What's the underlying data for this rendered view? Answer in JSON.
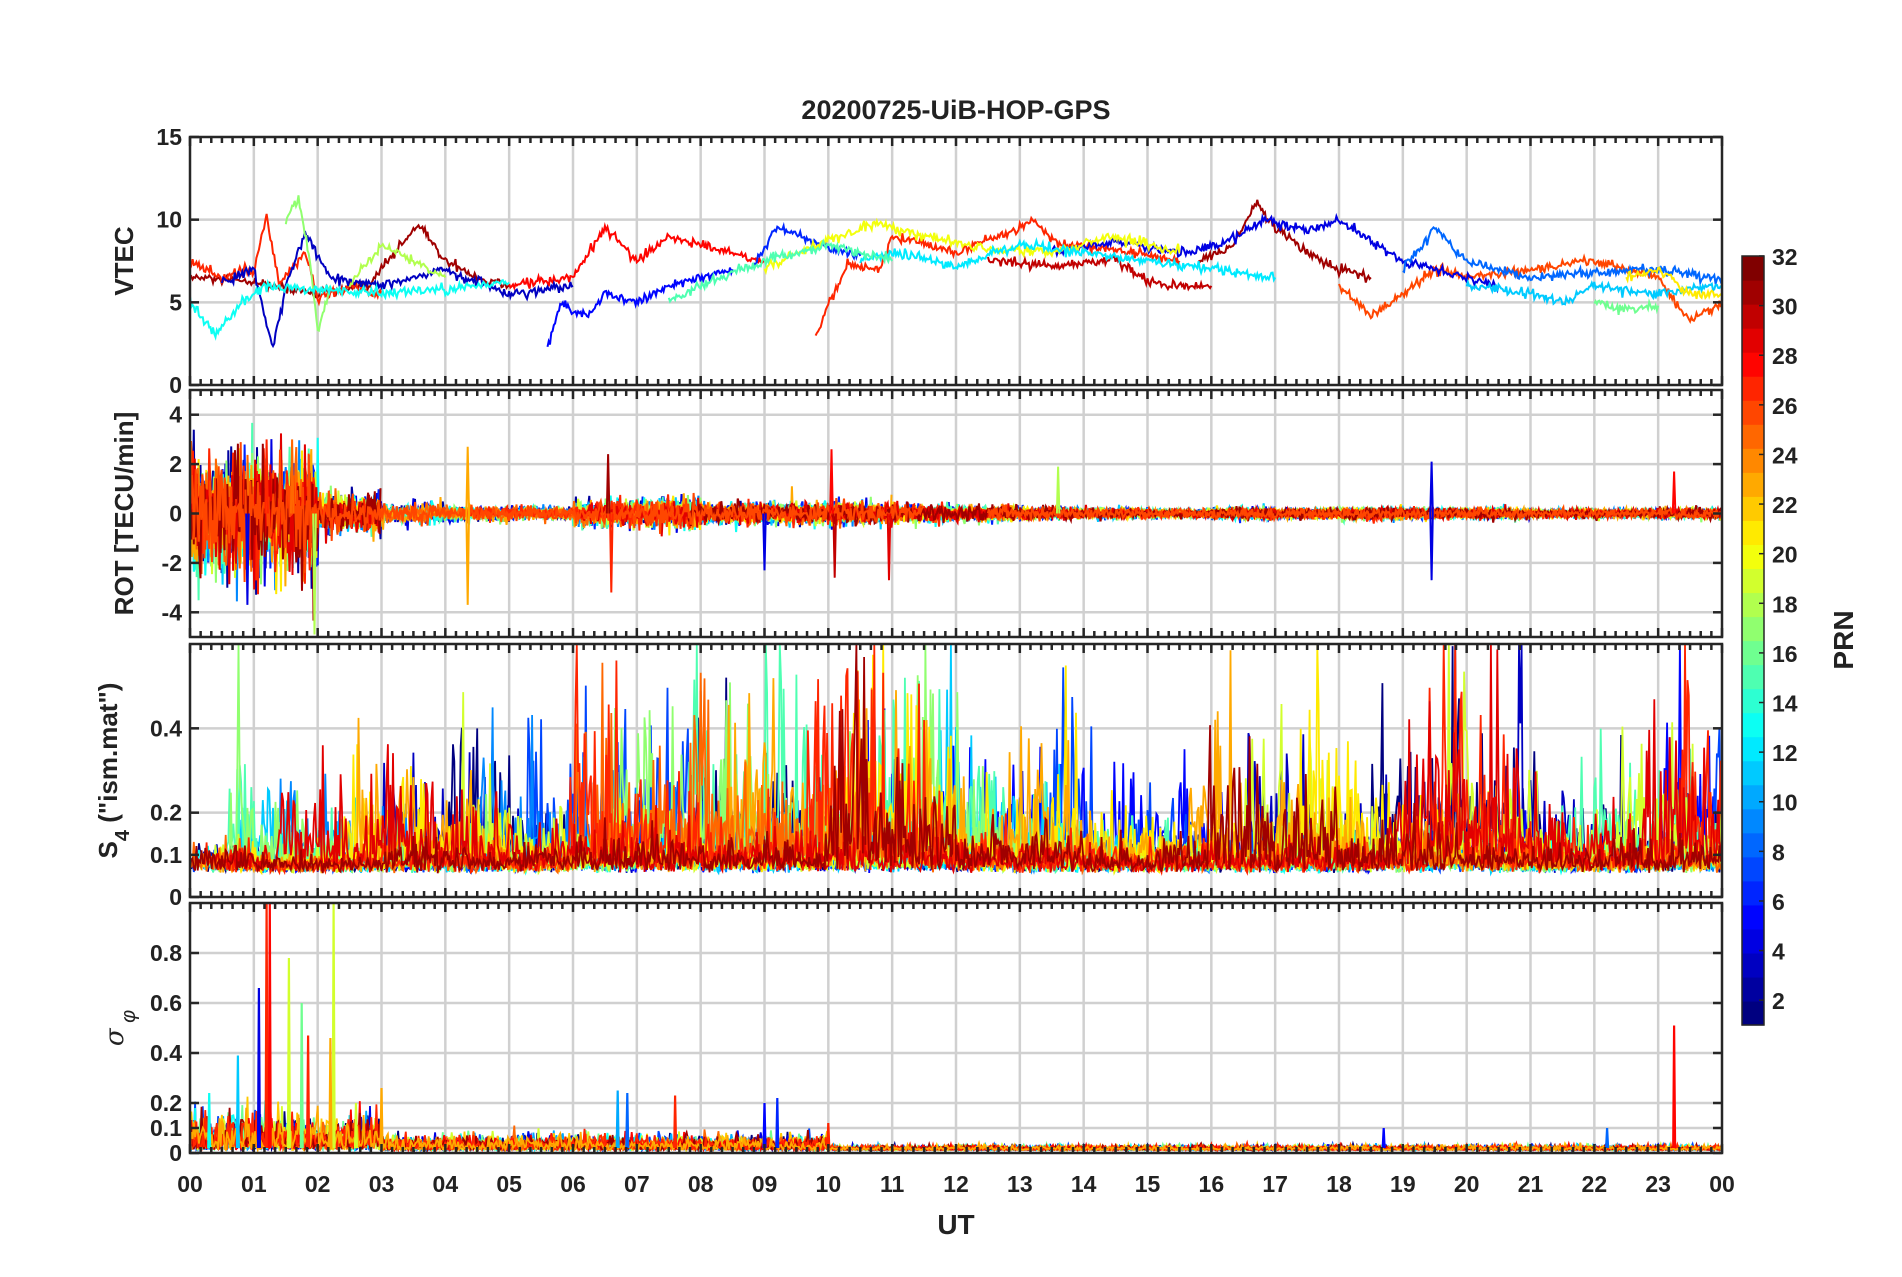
{
  "chart_data": {
    "type": "line",
    "title": "20200725-UiB-HOP-GPS",
    "xlabel": "UT",
    "x_tick_labels": [
      "00",
      "01",
      "02",
      "03",
      "04",
      "05",
      "06",
      "07",
      "08",
      "09",
      "10",
      "11",
      "12",
      "13",
      "14",
      "15",
      "16",
      "17",
      "18",
      "19",
      "20",
      "21",
      "22",
      "23",
      "00"
    ],
    "xlim_hours": [
      0,
      24
    ],
    "grid": true,
    "colorbar": {
      "label": "PRN",
      "range": [
        1,
        32
      ],
      "ticks": [
        2,
        4,
        6,
        8,
        10,
        12,
        14,
        16,
        18,
        20,
        22,
        24,
        26,
        28,
        30,
        32
      ],
      "colormap": "jet",
      "placement": "right"
    },
    "panels": [
      {
        "id": "vtec",
        "ylabel": "VTEC",
        "ylim": [
          0,
          15
        ],
        "yticks": [
          0,
          5,
          10,
          15
        ],
        "ytick_labels": [
          "0",
          "5",
          "10",
          "15"
        ],
        "series": [
          {
            "prn": 31,
            "points": [
              [
                0,
                6.5
              ],
              [
                1,
                6.2
              ],
              [
                2,
                5.5
              ],
              [
                2.8,
                6
              ],
              [
                3.3,
                8.5
              ],
              [
                3.6,
                9.7
              ],
              [
                4,
                7.5
              ],
              [
                4.5,
                6.5
              ],
              [
                5,
                6
              ]
            ]
          },
          {
            "prn": 31,
            "points": [
              [
                15.8,
                7.5
              ],
              [
                16.3,
                8.3
              ],
              [
                16.7,
                11
              ],
              [
                17,
                9.5
              ],
              [
                17.5,
                8
              ],
              [
                18,
                7
              ],
              [
                18.5,
                6.5
              ]
            ]
          },
          {
            "prn": 30,
            "points": [
              [
                12.5,
                7.5
              ],
              [
                13.5,
                7.2
              ],
              [
                14.5,
                7.6
              ],
              [
                15,
                6.2
              ],
              [
                15.5,
                6
              ],
              [
                16,
                6
              ]
            ]
          },
          {
            "prn": 27,
            "points": [
              [
                0,
                7.5
              ],
              [
                0.5,
                6.5
              ],
              [
                1,
                7
              ],
              [
                1.2,
                10.2
              ],
              [
                1.4,
                6
              ],
              [
                1.8,
                8
              ],
              [
                2,
                5.3
              ],
              [
                2.5,
                6
              ],
              [
                3,
                5.5
              ]
            ]
          },
          {
            "prn": 27,
            "points": [
              [
                9.8,
                2.8
              ],
              [
                10,
                5
              ],
              [
                10.3,
                7.2
              ],
              [
                10.8,
                7
              ],
              [
                11,
                9
              ],
              [
                12,
                8
              ],
              [
                13,
                9.5
              ],
              [
                13.2,
                10
              ],
              [
                13.6,
                8.5
              ],
              [
                14.5,
                8.2
              ],
              [
                15.5,
                7.5
              ]
            ]
          },
          {
            "prn": 26,
            "points": [
              [
                18,
                6
              ],
              [
                18.5,
                4.2
              ],
              [
                19,
                5.5
              ],
              [
                19.5,
                7
              ],
              [
                20,
                6.5
              ],
              [
                21,
                7
              ],
              [
                22,
                7.5
              ],
              [
                23,
                6.5
              ],
              [
                23.5,
                3.8
              ],
              [
                24,
                5
              ]
            ]
          },
          {
            "prn": 28,
            "points": [
              [
                5,
                6
              ],
              [
                6,
                6.5
              ],
              [
                6.5,
                9.5
              ],
              [
                7,
                7.5
              ],
              [
                7.5,
                9
              ],
              [
                8,
                8.5
              ],
              [
                8.5,
                8
              ],
              [
                9,
                7.5
              ]
            ]
          },
          {
            "prn": 3,
            "points": [
              [
                0.5,
                6.2
              ],
              [
                1,
                7
              ],
              [
                1.3,
                2.2
              ],
              [
                1.5,
                6
              ],
              [
                1.8,
                9.2
              ],
              [
                2.2,
                6.5
              ],
              [
                3,
                6
              ],
              [
                4,
                7
              ],
              [
                5,
                5.5
              ],
              [
                6,
                6
              ]
            ]
          },
          {
            "prn": 5,
            "points": [
              [
                5.6,
                2.2
              ],
              [
                5.8,
                5
              ],
              [
                6.2,
                4
              ],
              [
                6.5,
                5.5
              ],
              [
                7,
                5
              ],
              [
                7.5,
                6
              ],
              [
                8,
                6.5
              ],
              [
                8.5,
                7
              ]
            ]
          },
          {
            "prn": 6,
            "points": [
              [
                8.8,
                7
              ],
              [
                9.2,
                9.5
              ],
              [
                9.6,
                9
              ],
              [
                10,
                8.2
              ],
              [
                10.5,
                7.8
              ]
            ]
          },
          {
            "prn": 4,
            "points": [
              [
                13.5,
                8
              ],
              [
                14.5,
                8.7
              ],
              [
                15.5,
                8
              ],
              [
                16.2,
                8.5
              ],
              [
                16.8,
                10
              ],
              [
                17.5,
                9.3
              ],
              [
                18,
                10
              ],
              [
                18.6,
                8.5
              ],
              [
                19,
                7.5
              ],
              [
                20,
                6.5
              ],
              [
                20.5,
                6
              ]
            ]
          },
          {
            "prn": 8,
            "points": [
              [
                19,
                7
              ],
              [
                19.5,
                9.5
              ],
              [
                20,
                7.5
              ],
              [
                21,
                6.5
              ],
              [
                22,
                6.8
              ],
              [
                23,
                7
              ],
              [
                24,
                6.5
              ]
            ]
          },
          {
            "prn": 20,
            "points": [
              [
                9,
                7
              ],
              [
                9.8,
                8.5
              ],
              [
                10.8,
                9.8
              ],
              [
                11.5,
                9
              ],
              [
                12.5,
                8.3
              ],
              [
                13.5,
                8
              ],
              [
                14.5,
                9
              ],
              [
                15.5,
                8
              ]
            ]
          },
          {
            "prn": 18,
            "points": [
              [
                2.5,
                6
              ],
              [
                3,
                8.5
              ],
              [
                3.5,
                7.5
              ],
              [
                4,
                6.5
              ]
            ]
          },
          {
            "prn": 17,
            "points": [
              [
                1.5,
                10
              ],
              [
                1.7,
                11.3
              ],
              [
                1.9,
                7
              ],
              [
                2,
                3.2
              ],
              [
                2.2,
                6
              ]
            ]
          },
          {
            "prn": 13,
            "points": [
              [
                0,
                5
              ],
              [
                0.4,
                3
              ],
              [
                0.8,
                5
              ],
              [
                1.2,
                6
              ],
              [
                2,
                5.8
              ],
              [
                3,
                5.5
              ],
              [
                4,
                5.8
              ],
              [
                5,
                6.2
              ]
            ]
          },
          {
            "prn": 12,
            "points": [
              [
                10.5,
                7.5
              ],
              [
                11,
                8
              ],
              [
                12,
                7.2
              ],
              [
                13,
                8.5
              ],
              [
                14,
                8
              ],
              [
                15,
                7.5
              ],
              [
                16,
                7
              ],
              [
                17,
                6.5
              ]
            ]
          },
          {
            "prn": 15,
            "points": [
              [
                7.5,
                5
              ],
              [
                8,
                6
              ],
              [
                8.5,
                6.8
              ],
              [
                9,
                7.5
              ],
              [
                10,
                8.5
              ],
              [
                11,
                7.5
              ]
            ]
          },
          {
            "prn": 11,
            "points": [
              [
                20,
                6
              ],
              [
                21,
                5.5
              ],
              [
                21.5,
                5
              ],
              [
                22,
                6
              ],
              [
                23,
                5.5
              ],
              [
                24,
                6
              ]
            ]
          },
          {
            "prn": 21,
            "points": [
              [
                22.5,
                6.5
              ],
              [
                23,
                7
              ],
              [
                23.5,
                5.5
              ],
              [
                24,
                5.5
              ]
            ]
          },
          {
            "prn": 16,
            "points": [
              [
                22,
                5
              ],
              [
                22.5,
                4.6
              ],
              [
                23,
                4.8
              ]
            ]
          }
        ]
      },
      {
        "id": "rot",
        "ylabel": "ROT [TECU/min]",
        "ylim": [
          -5,
          5
        ],
        "yticks": [
          -4,
          -2,
          0,
          2,
          4
        ],
        "ytick_labels": [
          "-4",
          "-2",
          "0",
          "2",
          "4"
        ],
        "hourly_noise_amplitude": [
          1.1,
          1.1,
          0.35,
          0.2,
          0.15,
          0.12,
          0.25,
          0.28,
          0.2,
          0.2,
          0.22,
          0.18,
          0.15,
          0.12,
          0.1,
          0.08,
          0.12,
          0.1,
          0.12,
          0.1,
          0.1,
          0.08,
          0.08,
          0.1
        ],
        "prns": [
          2,
          4,
          6,
          9,
          11,
          13,
          15,
          17,
          19,
          21,
          23,
          25,
          27,
          29,
          31,
          26
        ],
        "spikes": [
          [
            0.9,
            -3.7,
            4
          ],
          [
            1.2,
            3,
            27
          ],
          [
            1.6,
            3,
            25
          ],
          [
            1.95,
            -4.9,
            18
          ],
          [
            4.35,
            2.7,
            23
          ],
          [
            4.35,
            -3.7,
            23
          ],
          [
            6.55,
            2.4,
            31
          ],
          [
            6.6,
            -3.2,
            27
          ],
          [
            9.0,
            -2.3,
            4
          ],
          [
            10.05,
            2.6,
            28
          ],
          [
            10.1,
            -2.6,
            30
          ],
          [
            10.95,
            -2.7,
            29
          ],
          [
            13.6,
            1.9,
            18
          ],
          [
            19.45,
            2.1,
            4
          ],
          [
            19.45,
            -2.7,
            4
          ],
          [
            23.25,
            1.7,
            28
          ]
        ]
      },
      {
        "id": "s4",
        "ylabel": "S4 (\"ism.mat\")",
        "ylabel_main": "S",
        "ylabel_sub": "4",
        "ylabel_rest": " (\"ism.mat\")",
        "ylim": [
          0,
          0.6
        ],
        "yticks": [
          0,
          0.1,
          0.2,
          0.4
        ],
        "ytick_labels": [
          "0",
          "0.1",
          "0.2",
          "0.4"
        ],
        "baseline": 0.07,
        "hourly_activity": [
          0.12,
          0.08,
          0.1,
          0.12,
          0.14,
          0.1,
          0.16,
          0.2,
          0.14,
          0.16,
          0.18,
          0.18,
          0.12,
          0.14,
          0.1,
          0.12,
          0.12,
          0.14,
          0.14,
          0.18,
          0.14,
          0.1,
          0.14,
          0.16
        ],
        "prns": [
          1,
          3,
          5,
          7,
          9,
          11,
          13,
          15,
          17,
          19,
          21,
          23,
          25,
          27,
          29,
          31
        ]
      },
      {
        "id": "sigma_phi",
        "ylabel": "σ φ",
        "ylabel_main": "σ",
        "ylabel_sub": "φ",
        "ylim": [
          0,
          1
        ],
        "yticks": [
          0,
          0.1,
          0.2,
          0.4,
          0.6,
          0.8
        ],
        "ytick_labels": [
          "0",
          "0.1",
          "0.2",
          "0.4",
          "0.6",
          "0.8"
        ],
        "baseline": 0.02,
        "spikes": [
          [
            1.2,
            1.0,
            27
          ],
          [
            1.25,
            1.0,
            28
          ],
          [
            1.08,
            0.66,
            4
          ],
          [
            0.75,
            0.39,
            11
          ],
          [
            1.55,
            0.78,
            19
          ],
          [
            1.75,
            0.6,
            16
          ],
          [
            1.85,
            0.47,
            27
          ],
          [
            2.25,
            1.0,
            19
          ],
          [
            2.2,
            0.46,
            23
          ],
          [
            0.3,
            0.24,
            13
          ],
          [
            3.0,
            0.26,
            23
          ],
          [
            2.6,
            0.2,
            19
          ],
          [
            6.7,
            0.25,
            10
          ],
          [
            6.85,
            0.24,
            8
          ],
          [
            7.6,
            0.23,
            27
          ],
          [
            9.2,
            0.22,
            6
          ],
          [
            9.0,
            0.2,
            5
          ],
          [
            10.0,
            0.12,
            27
          ],
          [
            23.25,
            0.51,
            28
          ],
          [
            22.2,
            0.1,
            8
          ],
          [
            18.7,
            0.1,
            5
          ]
        ]
      }
    ]
  }
}
